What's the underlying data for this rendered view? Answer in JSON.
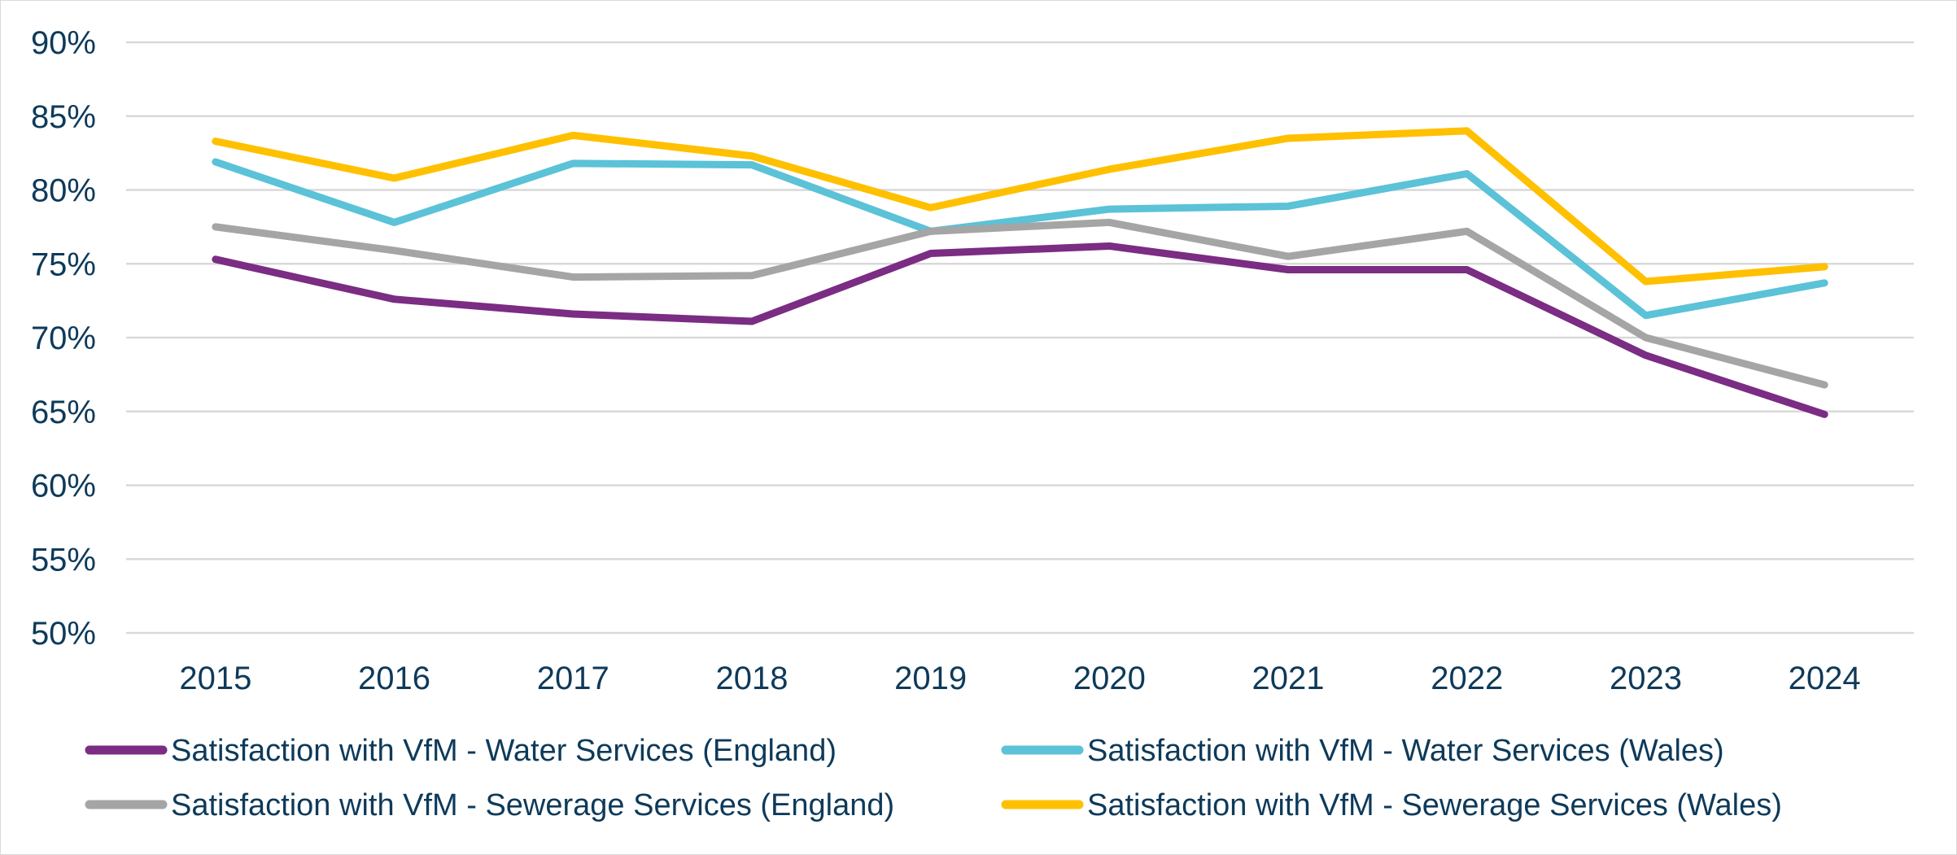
{
  "chart_data": {
    "type": "line",
    "title": "",
    "xlabel": "",
    "ylabel": "",
    "categories": [
      "2015",
      "2016",
      "2017",
      "2018",
      "2019",
      "2020",
      "2021",
      "2022",
      "2023",
      "2024"
    ],
    "ylim": [
      50,
      90
    ],
    "yticks": [
      50,
      55,
      60,
      65,
      70,
      75,
      80,
      85,
      90
    ],
    "ytick_labels": [
      "50%",
      "55%",
      "60%",
      "65%",
      "70%",
      "75%",
      "80%",
      "85%",
      "90%"
    ],
    "grid": true,
    "legend_position": "bottom",
    "series": [
      {
        "name": "Satisfaction with VfM - Water Services (England)",
        "color": "#7b2c83",
        "values": [
          75.3,
          72.6,
          71.6,
          71.1,
          75.7,
          76.2,
          74.6,
          74.6,
          68.8,
          64.8
        ]
      },
      {
        "name": "Satisfaction with VfM - Water Services (Wales)",
        "color": "#5bc2d7",
        "values": [
          81.9,
          77.8,
          81.8,
          81.7,
          77.2,
          78.7,
          78.9,
          81.1,
          71.5,
          73.7
        ]
      },
      {
        "name": "Satisfaction with VfM - Sewerage Services (England)",
        "color": "#a5a5a5",
        "values": [
          77.5,
          75.9,
          74.1,
          74.2,
          77.2,
          77.8,
          75.5,
          77.2,
          70.0,
          66.8
        ]
      },
      {
        "name": "Satisfaction with VfM - Sewerage Services (Wales)",
        "color": "#ffc000",
        "values": [
          83.3,
          80.8,
          83.7,
          82.3,
          78.8,
          81.4,
          83.5,
          84.0,
          73.8,
          74.8
        ]
      }
    ]
  }
}
